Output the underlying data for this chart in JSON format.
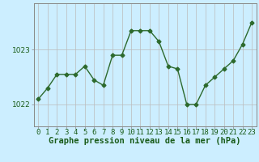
{
  "x": [
    0,
    1,
    2,
    3,
    4,
    5,
    6,
    7,
    8,
    9,
    10,
    11,
    12,
    13,
    14,
    15,
    16,
    17,
    18,
    19,
    20,
    21,
    22,
    23
  ],
  "y": [
    1022.1,
    1022.3,
    1022.55,
    1022.55,
    1022.55,
    1022.7,
    1022.45,
    1022.35,
    1022.9,
    1022.9,
    1023.35,
    1023.35,
    1023.35,
    1023.15,
    1022.7,
    1022.65,
    1022.0,
    1022.0,
    1022.35,
    1022.5,
    1022.65,
    1022.8,
    1023.1,
    1023.5
  ],
  "line_color": "#2d6a2d",
  "marker": "D",
  "marker_size": 2.5,
  "linewidth": 1.0,
  "background_color": "#cceeff",
  "grid_color": "#bbbbbb",
  "xlabel": "Graphe pression niveau de la mer (hPa)",
  "xlabel_fontsize": 7.5,
  "xlabel_color": "#1a5c1a",
  "ylabel_ticks": [
    1022,
    1023
  ],
  "ylim": [
    1021.6,
    1023.85
  ],
  "xlim": [
    -0.5,
    23.5
  ],
  "tick_fontsize": 6.5,
  "tick_color": "#1a5c1a",
  "spine_color": "#888888"
}
